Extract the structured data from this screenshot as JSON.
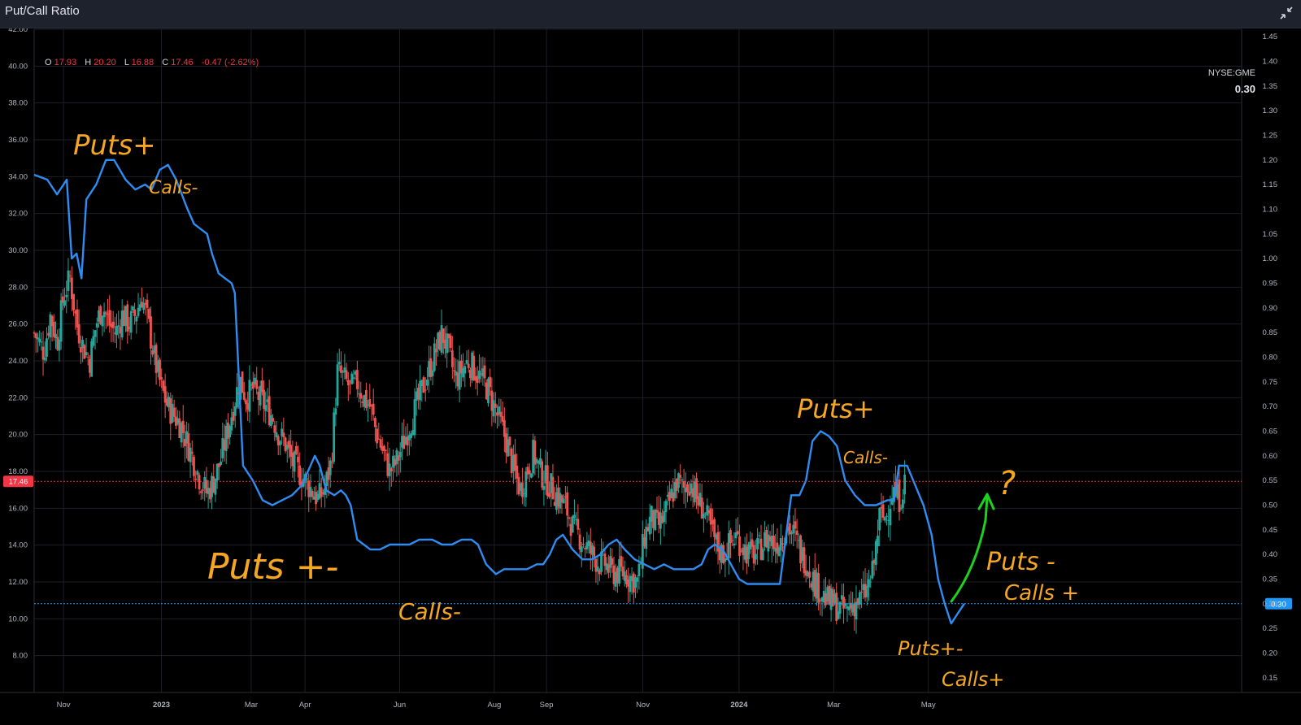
{
  "header": {
    "title": "Put/Call Ratio",
    "collapse_icon": "collapse-arrows-icon"
  },
  "legend": {
    "o_label": "O",
    "o": "17.93",
    "h_label": "H",
    "h": "20.20",
    "l_label": "L",
    "l": "16.88",
    "c_label": "C",
    "c": "17.46",
    "change": "-0.47 (-2.62%)"
  },
  "indicator": {
    "symbol": "NYSE:GME",
    "value": "0.30"
  },
  "colors": {
    "up": "#26a69a",
    "down": "#ef5350",
    "ratio_line": "#2f8cf2",
    "annotation": "#f5a623",
    "arrow": "#1fd11f",
    "price_tag": "#f23645",
    "ratio_tag": "#2196f3"
  },
  "chart_data": {
    "type": "line",
    "x_ticks": [
      "Nov",
      "2023",
      "Mar",
      "Apr",
      "Jun",
      "Aug",
      "Sep",
      "Nov",
      "2024",
      "Mar",
      "May"
    ],
    "x_tick_pos": [
      0.5,
      3.5,
      6.25,
      7.9,
      10.8,
      13.7,
      15.3,
      18.25,
      21.2,
      24.1,
      27.0
    ],
    "x_range": [
      -0.4,
      36.6
    ],
    "left_axis": {
      "ticks": [
        "42.00",
        "40.00",
        "38.00",
        "36.00",
        "34.00",
        "32.00",
        "30.00",
        "28.00",
        "26.00",
        "24.00",
        "22.00",
        "20.00",
        "18.00",
        "16.00",
        "14.00",
        "12.00",
        "10.00",
        "8.00"
      ],
      "range": [
        6.0,
        42.0
      ]
    },
    "right_axis": {
      "ticks": [
        "1.45",
        "1.40",
        "1.35",
        "1.30",
        "1.25",
        "1.20",
        "1.15",
        "1.10",
        "1.05",
        "1.00",
        "0.95",
        "0.90",
        "0.85",
        "0.80",
        "0.75",
        "0.70",
        "0.65",
        "0.60",
        "0.55",
        "0.50",
        "0.45",
        "0.40",
        "0.35",
        "0.30",
        "0.25",
        "0.20",
        "0.15"
      ],
      "range": [
        0.12,
        1.465
      ]
    },
    "last_price": {
      "value": 17.46,
      "label": "17.46"
    },
    "last_ratio": {
      "value": 0.3,
      "label": "0.30"
    },
    "series": [
      {
        "kind": "ratio_line",
        "axis": "right",
        "points": [
          [
            -0.4,
            1.17
          ],
          [
            0,
            1.16
          ],
          [
            0.3,
            1.13
          ],
          [
            0.6,
            1.16
          ],
          [
            0.75,
            1.0
          ],
          [
            0.9,
            1.01
          ],
          [
            1.05,
            0.96
          ],
          [
            1.2,
            1.12
          ],
          [
            1.5,
            1.15
          ],
          [
            1.8,
            1.2
          ],
          [
            2.05,
            1.2
          ],
          [
            2.4,
            1.16
          ],
          [
            2.7,
            1.14
          ],
          [
            3.0,
            1.15
          ],
          [
            3.2,
            1.14
          ],
          [
            3.45,
            1.18
          ],
          [
            3.7,
            1.19
          ],
          [
            3.95,
            1.16
          ],
          [
            4.3,
            1.1
          ],
          [
            4.5,
            1.07
          ],
          [
            4.7,
            1.06
          ],
          [
            4.9,
            1.05
          ],
          [
            5.05,
            1.01
          ],
          [
            5.25,
            0.97
          ],
          [
            5.45,
            0.96
          ],
          [
            5.65,
            0.95
          ],
          [
            5.75,
            0.93
          ],
          [
            6.0,
            0.58
          ],
          [
            6.3,
            0.55
          ],
          [
            6.6,
            0.51
          ],
          [
            6.9,
            0.5
          ],
          [
            7.2,
            0.51
          ],
          [
            7.5,
            0.52
          ],
          [
            7.8,
            0.54
          ],
          [
            8.0,
            0.57
          ],
          [
            8.2,
            0.6
          ],
          [
            8.35,
            0.58
          ],
          [
            8.55,
            0.53
          ],
          [
            8.8,
            0.52
          ],
          [
            9.0,
            0.53
          ],
          [
            9.15,
            0.52
          ],
          [
            9.3,
            0.5
          ],
          [
            9.5,
            0.43
          ],
          [
            9.7,
            0.42
          ],
          [
            9.9,
            0.41
          ],
          [
            10.2,
            0.41
          ],
          [
            10.5,
            0.42
          ],
          [
            10.8,
            0.42
          ],
          [
            11.1,
            0.42
          ],
          [
            11.4,
            0.43
          ],
          [
            11.8,
            0.43
          ],
          [
            12.1,
            0.42
          ],
          [
            12.4,
            0.42
          ],
          [
            12.7,
            0.43
          ],
          [
            13.0,
            0.43
          ],
          [
            13.2,
            0.42
          ],
          [
            13.45,
            0.38
          ],
          [
            13.75,
            0.36
          ],
          [
            14.0,
            0.37
          ],
          [
            14.4,
            0.37
          ],
          [
            14.7,
            0.37
          ],
          [
            15.0,
            0.38
          ],
          [
            15.2,
            0.38
          ],
          [
            15.4,
            0.4
          ],
          [
            15.6,
            0.43
          ],
          [
            15.8,
            0.44
          ],
          [
            16.1,
            0.41
          ],
          [
            16.4,
            0.39
          ],
          [
            16.7,
            0.39
          ],
          [
            16.95,
            0.4
          ],
          [
            17.2,
            0.42
          ],
          [
            17.45,
            0.43
          ],
          [
            17.7,
            0.41
          ],
          [
            18.0,
            0.39
          ],
          [
            18.3,
            0.38
          ],
          [
            18.6,
            0.37
          ],
          [
            18.9,
            0.38
          ],
          [
            19.2,
            0.37
          ],
          [
            19.5,
            0.37
          ],
          [
            19.8,
            0.37
          ],
          [
            20.05,
            0.38
          ],
          [
            20.25,
            0.41
          ],
          [
            20.45,
            0.42
          ],
          [
            20.7,
            0.41
          ],
          [
            20.95,
            0.38
          ],
          [
            21.2,
            0.35
          ],
          [
            21.45,
            0.34
          ],
          [
            21.7,
            0.34
          ],
          [
            21.95,
            0.34
          ],
          [
            22.2,
            0.34
          ],
          [
            22.45,
            0.34
          ],
          [
            22.8,
            0.52
          ],
          [
            23.05,
            0.52
          ],
          [
            23.25,
            0.55
          ],
          [
            23.45,
            0.63
          ],
          [
            23.7,
            0.65
          ],
          [
            23.95,
            0.64
          ],
          [
            24.2,
            0.62
          ],
          [
            24.45,
            0.55
          ],
          [
            24.75,
            0.52
          ],
          [
            25.05,
            0.5
          ],
          [
            25.4,
            0.5
          ],
          [
            25.75,
            0.51
          ],
          [
            25.95,
            0.51
          ],
          [
            26.1,
            0.58
          ],
          [
            26.35,
            0.58
          ],
          [
            26.6,
            0.54
          ],
          [
            26.85,
            0.5
          ],
          [
            27.1,
            0.44
          ],
          [
            27.3,
            0.35
          ],
          [
            27.5,
            0.3
          ],
          [
            27.7,
            0.26
          ],
          [
            27.9,
            0.28
          ],
          [
            28.1,
            0.3
          ]
        ]
      },
      {
        "kind": "candles",
        "axis": "left",
        "points": [
          [
            -0.4,
            25.5
          ],
          [
            -0.1,
            24.5
          ],
          [
            0.1,
            26.5
          ],
          [
            0.3,
            25.0
          ],
          [
            0.5,
            27.5
          ],
          [
            0.7,
            28.5
          ],
          [
            0.9,
            26.0
          ],
          [
            1.1,
            24.8
          ],
          [
            1.3,
            24.0
          ],
          [
            1.5,
            26.0
          ],
          [
            1.7,
            27.0
          ],
          [
            1.9,
            26.0
          ],
          [
            2.1,
            25.5
          ],
          [
            2.3,
            26.5
          ],
          [
            2.5,
            26.0
          ],
          [
            2.7,
            26.5
          ],
          [
            2.9,
            27.5
          ],
          [
            3.1,
            26.0
          ],
          [
            3.3,
            24.0
          ],
          [
            3.5,
            22.5
          ],
          [
            3.7,
            21.5
          ],
          [
            3.9,
            21.0
          ],
          [
            4.1,
            20.5
          ],
          [
            4.3,
            19.5
          ],
          [
            4.5,
            18.5
          ],
          [
            4.7,
            17.5
          ],
          [
            4.9,
            16.8
          ],
          [
            5.1,
            17.5
          ],
          [
            5.3,
            18.5
          ],
          [
            5.5,
            20.0
          ],
          [
            5.7,
            21.5
          ],
          [
            5.9,
            23.0
          ],
          [
            6.1,
            22.0
          ],
          [
            6.3,
            22.5
          ],
          [
            6.5,
            22.0
          ],
          [
            6.7,
            21.5
          ],
          [
            6.9,
            21.0
          ],
          [
            7.1,
            20.0
          ],
          [
            7.3,
            19.5
          ],
          [
            7.5,
            18.5
          ],
          [
            7.7,
            18.0
          ],
          [
            7.9,
            17.5
          ],
          [
            8.1,
            17.0
          ],
          [
            8.3,
            16.5
          ],
          [
            8.5,
            17.0
          ],
          [
            8.7,
            18.5
          ],
          [
            8.9,
            23.5
          ],
          [
            9.1,
            23.0
          ],
          [
            9.3,
            22.5
          ],
          [
            9.5,
            22.8
          ],
          [
            9.7,
            22.0
          ],
          [
            9.9,
            21.5
          ],
          [
            10.1,
            20.0
          ],
          [
            10.3,
            19.0
          ],
          [
            10.5,
            18.0
          ],
          [
            10.7,
            18.5
          ],
          [
            10.9,
            19.5
          ],
          [
            11.1,
            20.5
          ],
          [
            11.3,
            21.5
          ],
          [
            11.5,
            22.5
          ],
          [
            11.7,
            23.5
          ],
          [
            11.9,
            24.5
          ],
          [
            12.1,
            25.5
          ],
          [
            12.3,
            24.5
          ],
          [
            12.5,
            23.0
          ],
          [
            12.7,
            23.5
          ],
          [
            12.9,
            24.0
          ],
          [
            13.1,
            23.5
          ],
          [
            13.3,
            23.0
          ],
          [
            13.5,
            22.5
          ],
          [
            13.7,
            21.5
          ],
          [
            13.9,
            20.5
          ],
          [
            14.1,
            19.5
          ],
          [
            14.3,
            18.0
          ],
          [
            14.5,
            17.0
          ],
          [
            14.7,
            18.0
          ],
          [
            14.9,
            19.0
          ],
          [
            15.1,
            18.0
          ],
          [
            15.3,
            17.5
          ],
          [
            15.5,
            17.0
          ],
          [
            15.7,
            16.5
          ],
          [
            15.9,
            16.0
          ],
          [
            16.1,
            15.0
          ],
          [
            16.3,
            14.5
          ],
          [
            16.5,
            14.0
          ],
          [
            16.7,
            13.5
          ],
          [
            16.9,
            13.0
          ],
          [
            17.1,
            13.0
          ],
          [
            17.3,
            12.5
          ],
          [
            17.5,
            12.5
          ],
          [
            17.7,
            12.5
          ],
          [
            17.9,
            12.2
          ],
          [
            18.1,
            12.0
          ],
          [
            18.3,
            14.5
          ],
          [
            18.5,
            15.5
          ],
          [
            18.7,
            15.0
          ],
          [
            18.9,
            15.5
          ],
          [
            19.1,
            16.5
          ],
          [
            19.3,
            17.5
          ],
          [
            19.5,
            17.0
          ],
          [
            19.7,
            17.5
          ],
          [
            19.9,
            16.5
          ],
          [
            20.1,
            16.0
          ],
          [
            20.3,
            15.0
          ],
          [
            20.5,
            14.0
          ],
          [
            20.7,
            13.5
          ],
          [
            20.9,
            14.0
          ],
          [
            21.1,
            14.5
          ],
          [
            21.3,
            14.0
          ],
          [
            21.5,
            13.5
          ],
          [
            21.7,
            13.5
          ],
          [
            21.9,
            14.0
          ],
          [
            22.1,
            14.5
          ],
          [
            22.3,
            14.0
          ],
          [
            22.5,
            14.5
          ],
          [
            22.7,
            15.0
          ],
          [
            22.9,
            14.5
          ],
          [
            23.1,
            13.5
          ],
          [
            23.3,
            13.0
          ],
          [
            23.5,
            12.0
          ],
          [
            23.7,
            11.5
          ],
          [
            23.9,
            11.0
          ],
          [
            24.1,
            10.8
          ],
          [
            24.3,
            10.5
          ],
          [
            24.5,
            10.5
          ],
          [
            24.7,
            10.8
          ],
          [
            24.9,
            11.0
          ],
          [
            25.1,
            11.5
          ],
          [
            25.3,
            12.5
          ],
          [
            25.5,
            15.5
          ],
          [
            25.7,
            15.5
          ],
          [
            25.9,
            17.0
          ],
          [
            26.1,
            16.5
          ],
          [
            26.3,
            17.46
          ]
        ]
      }
    ]
  },
  "annotations": {
    "puts_calls_minus": "Puts+",
    "calls_minus": "Calls-",
    "puts_pm": "Puts +-",
    "calls_dash": "Calls-",
    "puts_plus_2": "Puts+",
    "calls_minus_2": "Calls-",
    "puts_pm_2": "Puts+-",
    "calls_plus": "Calls+",
    "puts_minus": "Puts -",
    "calls_plus_2": "Calls +",
    "question": "?"
  }
}
